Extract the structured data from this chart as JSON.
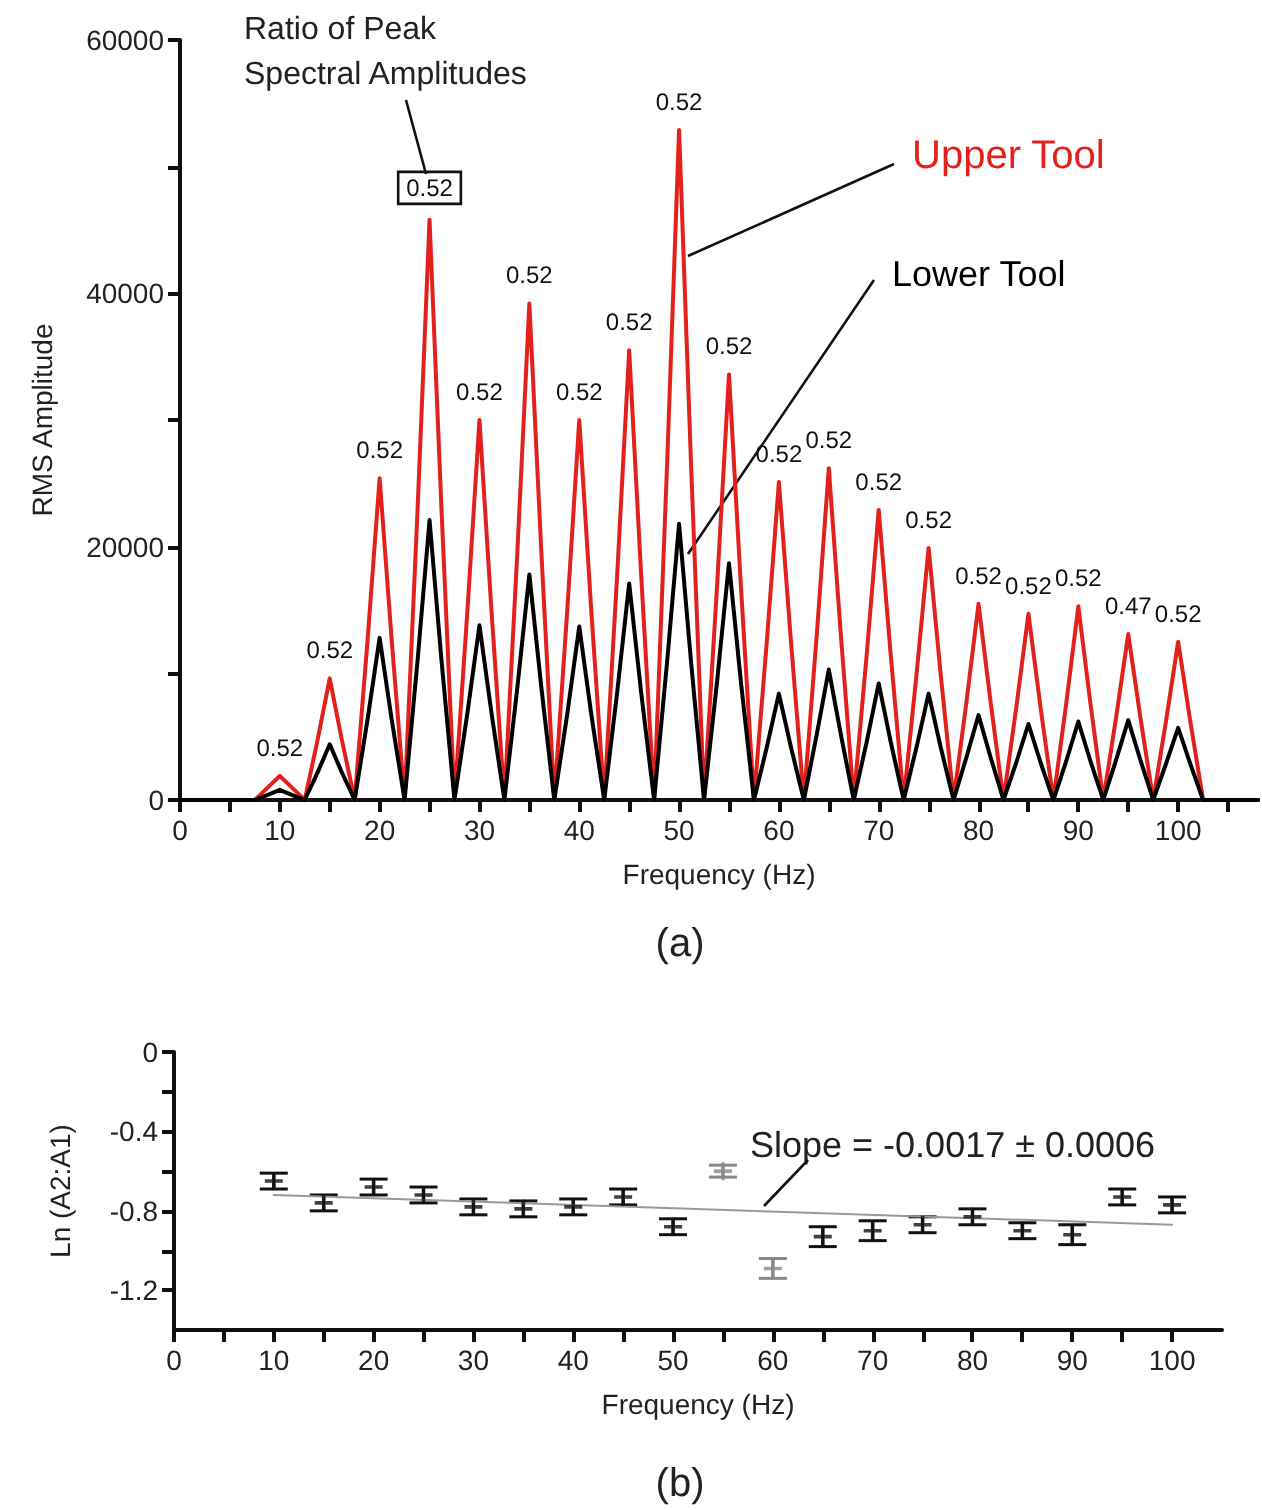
{
  "chart_data": [
    {
      "type": "line",
      "xlabel": "Frequency (Hz)",
      "ylabel": "RMS Amplitude",
      "xlim": [
        0,
        108
      ],
      "ylim": [
        0,
        60000
      ],
      "xticks": [
        0,
        {
          "value": 5,
          "label": null
        },
        10,
        {
          "value": 15,
          "label": null
        },
        20,
        {
          "value": 25,
          "label": null
        },
        30,
        {
          "value": 35,
          "label": null
        },
        40,
        {
          "value": 45,
          "label": null
        },
        50,
        {
          "value": 55,
          "label": null
        },
        60,
        {
          "value": 65,
          "label": null
        },
        70,
        {
          "value": 75,
          "label": null
        },
        80,
        {
          "value": 85,
          "label": null
        },
        90,
        {
          "value": 95,
          "label": null
        },
        100,
        {
          "value": 105,
          "label": null
        }
      ],
      "yticks": [
        0,
        {
          "value": 10000,
          "label": null
        },
        20000,
        {
          "value": 30000,
          "label": null
        },
        40000,
        {
          "value": 50000,
          "label": null
        },
        60000
      ],
      "x": [
        0,
        7.5,
        8.8,
        10,
        11.2,
        12.5,
        13.8,
        15,
        16.2,
        17.5,
        18.8,
        20,
        21.2,
        22.5,
        23.8,
        25,
        26.2,
        27.5,
        28.8,
        30,
        31.2,
        32.5,
        33.8,
        35,
        36.2,
        37.5,
        38.8,
        40,
        41.2,
        42.5,
        43.8,
        45,
        46.2,
        47.5,
        48.8,
        50,
        51.2,
        52.5,
        53.8,
        55,
        56.2,
        57.5,
        58.8,
        60,
        61.2,
        62.5,
        63.8,
        65,
        66.2,
        67.5,
        68.8,
        70,
        71.2,
        72.5,
        73.8,
        75,
        76.2,
        77.5,
        78.8,
        80,
        81.2,
        82.5,
        83.8,
        85,
        86.2,
        87.5,
        88.8,
        90,
        91.2,
        92.5,
        93.8,
        95,
        96.2,
        97.5,
        98.8,
        100,
        101.2,
        102.5,
        108
      ],
      "series": [
        {
          "name": "Upper Tool",
          "color": "#e3211c",
          "values": [
            0,
            0,
            1000,
            1900,
            1000,
            0,
            4800,
            9600,
            4800,
            0,
            12700,
            25400,
            12700,
            0,
            22900,
            45800,
            22900,
            0,
            15000,
            30000,
            15000,
            0,
            19600,
            39200,
            19600,
            0,
            15000,
            30000,
            15000,
            0,
            17800,
            35500,
            17800,
            0,
            26500,
            52900,
            26500,
            0,
            16800,
            33600,
            16800,
            0,
            12600,
            25100,
            12600,
            0,
            13100,
            26200,
            13100,
            0,
            11500,
            22900,
            11500,
            0,
            10000,
            19900,
            10000,
            0,
            7800,
            15500,
            7800,
            0,
            7400,
            14700,
            7400,
            0,
            7700,
            15300,
            7700,
            0,
            6600,
            13100,
            6600,
            0,
            6300,
            12500,
            6300,
            0,
            0
          ]
        },
        {
          "name": "Lower Tool",
          "color": "#000000",
          "values": [
            0,
            0,
            400,
            800,
            400,
            0,
            2200,
            4400,
            2200,
            0,
            6400,
            12800,
            6400,
            0,
            11000,
            22100,
            11000,
            0,
            6900,
            13800,
            6900,
            0,
            8900,
            17800,
            8900,
            0,
            6800,
            13700,
            6800,
            0,
            8500,
            17100,
            8500,
            0,
            10900,
            21800,
            10900,
            0,
            9300,
            18700,
            9300,
            0,
            4200,
            8400,
            4200,
            0,
            5200,
            10300,
            5200,
            0,
            4600,
            9200,
            4600,
            0,
            4200,
            8400,
            4200,
            0,
            3400,
            6700,
            3400,
            0,
            3000,
            6000,
            3000,
            0,
            3100,
            6200,
            3100,
            0,
            3200,
            6300,
            3200,
            0,
            2900,
            5700,
            2900,
            0,
            0
          ]
        }
      ],
      "annotations": [
        "Ratio of Peak Spectral Amplitudes",
        "(a)",
        {
          "text": "0.52",
          "x": 10,
          "y": 1900
        },
        {
          "text": "0.52",
          "x": 15,
          "y": 9600
        },
        {
          "text": "0.52",
          "x": 20,
          "y": 25400
        },
        {
          "text": "0.52",
          "x": 25,
          "y": 45800
        },
        {
          "text": "0.52",
          "x": 30,
          "y": 30000
        },
        {
          "text": "0.52",
          "x": 35,
          "y": 39200
        },
        {
          "text": "0.52",
          "x": 40,
          "y": 30000
        },
        {
          "text": "0.52",
          "x": 45,
          "y": 35500
        },
        {
          "text": "0.52",
          "x": 50,
          "y": 52900
        },
        {
          "text": "0.52",
          "x": 55,
          "y": 33600
        },
        {
          "text": "0.52",
          "x": 60,
          "y": 25100
        },
        {
          "text": "0.52",
          "x": 65,
          "y": 26200
        },
        {
          "text": "0.52",
          "x": 70,
          "y": 22900
        },
        {
          "text": "0.52",
          "x": 75,
          "y": 19900
        },
        {
          "text": "0.52",
          "x": 80,
          "y": 15500
        },
        {
          "text": "0.52",
          "x": 85,
          "y": 14700
        },
        {
          "text": "0.52",
          "x": 90,
          "y": 15300
        },
        {
          "text": "0.47",
          "x": 95,
          "y": 13100
        },
        {
          "text": "0.52",
          "x": 100,
          "y": 12500
        }
      ]
    },
    {
      "type": "scatter",
      "xlabel": "Frequency (Hz)",
      "ylabel": "Ln (A2:A1)",
      "xlim": [
        0,
        105
      ],
      "ylim": [
        -1.4,
        0
      ],
      "marker": "cross",
      "xticks": [
        0,
        {
          "value": 5,
          "label": null
        },
        10,
        {
          "value": 15,
          "label": null
        },
        20,
        {
          "value": 25,
          "label": null
        },
        30,
        {
          "value": 35,
          "label": null
        },
        40,
        {
          "value": 45,
          "label": null
        },
        50,
        {
          "value": 55,
          "label": null
        },
        60,
        {
          "value": 65,
          "label": null
        },
        70,
        {
          "value": 75,
          "label": null
        },
        80,
        {
          "value": 85,
          "label": null
        },
        90,
        {
          "value": 95,
          "label": null
        },
        100
      ],
      "yticks": [
        {
          "value": 0,
          "label": "0"
        },
        {
          "value": -0.2,
          "label": null
        },
        -0.4,
        {
          "value": -0.6,
          "label": null
        },
        -0.8,
        {
          "value": -1.0,
          "label": null
        },
        -1.2
      ],
      "series": [
        {
          "color": "#111111",
          "x": [
            10,
            15,
            20,
            25,
            30,
            35,
            40,
            45,
            50,
            65,
            70,
            75,
            80,
            85,
            90,
            95,
            100
          ],
          "values": [
            -0.65,
            -0.76,
            -0.68,
            -0.72,
            -0.78,
            -0.79,
            -0.78,
            -0.73,
            -0.88,
            -0.93,
            -0.9,
            -0.87,
            -0.83,
            -0.9,
            -0.92,
            -0.73,
            -0.77
          ],
          "errors": [
            0.04,
            0.04,
            0.04,
            0.04,
            0.04,
            0.04,
            0.04,
            0.04,
            0.04,
            0.05,
            0.05,
            0.04,
            0.04,
            0.04,
            0.05,
            0.04,
            0.04
          ]
        },
        {
          "color": "#888888",
          "x": [
            55,
            60
          ],
          "values": [
            -0.6,
            -1.09
          ],
          "errors": [
            0.03,
            0.05
          ]
        },
        {
          "type": "line",
          "marker": "none",
          "color": "#999999",
          "x": [
            10,
            100
          ],
          "values": [
            -0.72,
            -0.87
          ]
        }
      ],
      "annotations": [
        "Slope = -0.0017 ± 0.0006",
        "(b)"
      ]
    }
  ]
}
